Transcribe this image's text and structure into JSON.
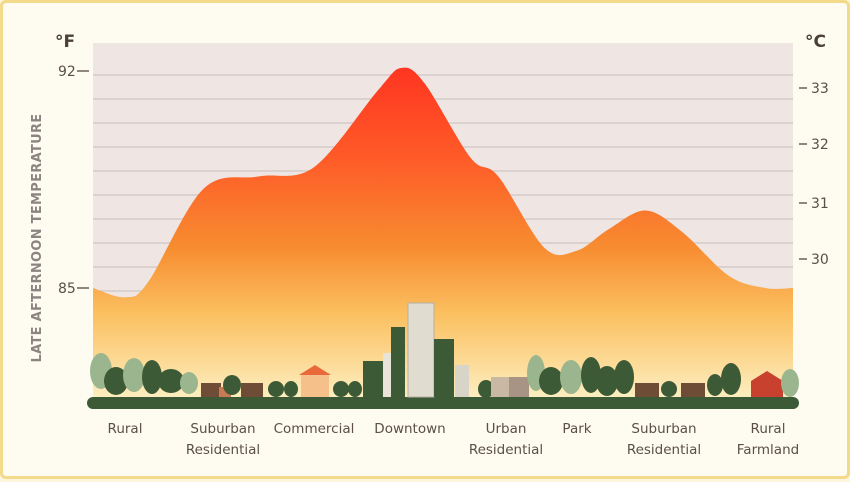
{
  "chart_data": {
    "type": "area",
    "title": "",
    "ylabel": "LATE AFTERNOON TEMPERATURE",
    "left_unit": "°F",
    "right_unit": "°C",
    "left_ticks": [
      "92",
      "85"
    ],
    "right_ticks": [
      "33",
      "32",
      "31",
      "30"
    ],
    "categories": [
      [
        "Rural"
      ],
      [
        "Suburban",
        "Residential"
      ],
      [
        "Commercial"
      ],
      [
        "Downtown"
      ],
      [
        "Urban",
        "Residential"
      ],
      [
        "Park"
      ],
      [
        "Suburban",
        "Residential"
      ],
      [
        "Rural",
        "Farmland"
      ]
    ],
    "profile_f": [
      {
        "x": 0.0,
        "y": 85.0
      },
      {
        "x": 0.35,
        "y": 84.7
      },
      {
        "x": 0.6,
        "y": 85.2
      },
      {
        "x": 1.2,
        "y": 88.2
      },
      {
        "x": 1.8,
        "y": 88.6
      },
      {
        "x": 2.4,
        "y": 88.9
      },
      {
        "x": 3.1,
        "y": 91.4
      },
      {
        "x": 3.35,
        "y": 92.1
      },
      {
        "x": 3.6,
        "y": 91.6
      },
      {
        "x": 4.1,
        "y": 89.2
      },
      {
        "x": 4.4,
        "y": 88.6
      },
      {
        "x": 4.9,
        "y": 86.3
      },
      {
        "x": 5.25,
        "y": 86.2
      },
      {
        "x": 5.6,
        "y": 86.9
      },
      {
        "x": 6.0,
        "y": 87.5
      },
      {
        "x": 6.4,
        "y": 86.8
      },
      {
        "x": 6.9,
        "y": 85.4
      },
      {
        "x": 7.3,
        "y": 85.0
      },
      {
        "x": 7.6,
        "y": 85.0
      }
    ],
    "grid": true,
    "colors": {
      "peak": "#ff3d26",
      "mid": "#f78a2e",
      "base": "#fde7a0",
      "ground": "#3d5a36"
    }
  }
}
